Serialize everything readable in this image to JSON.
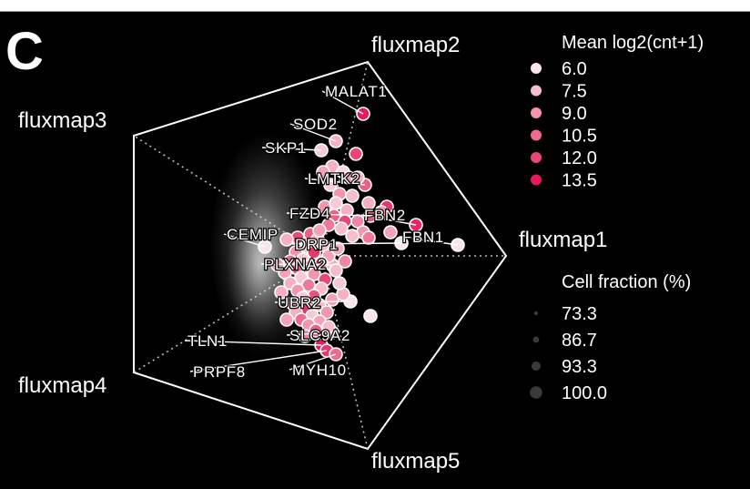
{
  "panel_label": "C",
  "chart_data": {
    "type": "scatter",
    "title": "",
    "xlabel": "",
    "ylabel": "",
    "grid": false,
    "axes": [
      "fluxmap1",
      "fluxmap2",
      "fluxmap3",
      "fluxmap4",
      "fluxmap5"
    ],
    "color_legend": {
      "title": "Mean log2(cnt+1)",
      "values": [
        "6.0",
        "7.5",
        "9.0",
        "10.5",
        "12.0",
        "13.5"
      ],
      "colors": [
        "#fce4ec",
        "#f9bccc",
        "#f594ad",
        "#f06a90",
        "#ea4676",
        "#e8185e"
      ],
      "placement": "top-right"
    },
    "size_legend": {
      "title": "Cell fraction (%)",
      "values": [
        "73.3",
        "86.7",
        "93.3",
        "100.0"
      ],
      "placement": "right"
    },
    "points": [
      {
        "label": "MALAT1",
        "x": 0.23,
        "y": 0.78,
        "expr": 13.5,
        "frac": 100.0
      },
      {
        "label": "SOD2",
        "x": 0.08,
        "y": 0.63,
        "expr": 8.0,
        "frac": 100.0
      },
      {
        "label": "SKP1",
        "x": 0.0,
        "y": 0.58,
        "expr": 7.0,
        "frac": 100.0
      },
      {
        "label": "LMTK2",
        "x": 0.24,
        "y": 0.39,
        "expr": 11.0,
        "frac": 100.0
      },
      {
        "label": "FBN2",
        "x": 0.52,
        "y": 0.17,
        "expr": 13.0,
        "frac": 100.0
      },
      {
        "label": "FZD4",
        "x": 0.27,
        "y": 0.22,
        "expr": 11.5,
        "frac": 100.0
      },
      {
        "label": "FBN1",
        "x": 0.75,
        "y": 0.06,
        "expr": 6.0,
        "frac": 100.0
      },
      {
        "label": "CEMIP",
        "x": -0.31,
        "y": 0.05,
        "expr": 6.0,
        "frac": 100.0
      },
      {
        "label": "DRP1",
        "x": 0.44,
        "y": 0.07,
        "expr": 6.0,
        "frac": 100.0
      },
      {
        "label": "PLXNA2",
        "x": 0.06,
        "y": -0.05,
        "expr": 8.0,
        "frac": 100.0
      },
      {
        "label": "UBR2",
        "x": 0.16,
        "y": -0.25,
        "expr": 6.0,
        "frac": 100.0
      },
      {
        "label": "SLC9A2",
        "x": 0.06,
        "y": -0.42,
        "expr": 8.0,
        "frac": 100.0
      },
      {
        "label": "TLN1",
        "x": 0.0,
        "y": -0.49,
        "expr": 13.5,
        "frac": 100.0
      },
      {
        "label": "PRPF8",
        "x": 0.03,
        "y": -0.52,
        "expr": 12.5,
        "frac": 100.0
      },
      {
        "label": "MYH10",
        "x": 0.08,
        "y": -0.54,
        "expr": 10.5,
        "frac": 100.0
      },
      {
        "label": "",
        "x": 0.19,
        "y": 0.56,
        "expr": 12.0,
        "frac": 100.0
      },
      {
        "label": "",
        "x": 0.06,
        "y": 0.49,
        "expr": 8.0,
        "frac": 100.0
      },
      {
        "label": "",
        "x": 0.12,
        "y": 0.46,
        "expr": 6.5,
        "frac": 100.0
      },
      {
        "label": "",
        "x": 0.01,
        "y": 0.46,
        "expr": 8.5,
        "frac": 100.0
      },
      {
        "label": "",
        "x": 0.15,
        "y": 0.43,
        "expr": 9.0,
        "frac": 100.0
      },
      {
        "label": "",
        "x": 0.2,
        "y": 0.43,
        "expr": 8.0,
        "frac": 100.0
      },
      {
        "label": "",
        "x": 0.05,
        "y": 0.39,
        "expr": 7.0,
        "frac": 100.0
      },
      {
        "label": "",
        "x": 0.1,
        "y": 0.34,
        "expr": 9.0,
        "frac": 100.0
      },
      {
        "label": "",
        "x": 0.17,
        "y": 0.33,
        "expr": 7.5,
        "frac": 100.0
      },
      {
        "label": "",
        "x": 0.26,
        "y": 0.29,
        "expr": 8.0,
        "frac": 100.0
      },
      {
        "label": "",
        "x": 0.36,
        "y": 0.27,
        "expr": 12.5,
        "frac": 100.0
      },
      {
        "label": "",
        "x": 0.33,
        "y": 0.24,
        "expr": 9.0,
        "frac": 100.0
      },
      {
        "label": "",
        "x": 0.07,
        "y": 0.22,
        "expr": 11.0,
        "frac": 100.0
      },
      {
        "label": "",
        "x": 0.14,
        "y": 0.25,
        "expr": 8.0,
        "frac": 100.0
      },
      {
        "label": "",
        "x": 0.2,
        "y": 0.19,
        "expr": 9.5,
        "frac": 100.0
      },
      {
        "label": "",
        "x": 0.13,
        "y": 0.19,
        "expr": 12.0,
        "frac": 100.0
      },
      {
        "label": "",
        "x": 0.38,
        "y": 0.13,
        "expr": 8.5,
        "frac": 100.0
      },
      {
        "label": "",
        "x": 0.23,
        "y": 0.13,
        "expr": 9.0,
        "frac": 100.0
      },
      {
        "label": "",
        "x": 0.17,
        "y": 0.11,
        "expr": 7.5,
        "frac": 100.0
      },
      {
        "label": "",
        "x": 0.26,
        "y": 0.1,
        "expr": 10.0,
        "frac": 100.0
      },
      {
        "label": "",
        "x": -0.06,
        "y": 0.12,
        "expr": 11.0,
        "frac": 100.0
      },
      {
        "label": "",
        "x": -0.13,
        "y": 0.1,
        "expr": 12.0,
        "frac": 100.0
      },
      {
        "label": "",
        "x": -0.02,
        "y": 0.09,
        "expr": 8.0,
        "frac": 100.0
      },
      {
        "label": "",
        "x": 0.01,
        "y": 0.06,
        "expr": 7.5,
        "frac": 100.0
      },
      {
        "label": "",
        "x": -0.08,
        "y": 0.05,
        "expr": 7.0,
        "frac": 100.0
      },
      {
        "label": "",
        "x": -0.14,
        "y": 0.02,
        "expr": 9.0,
        "frac": 100.0
      },
      {
        "label": "",
        "x": -0.04,
        "y": 0.02,
        "expr": 12.5,
        "frac": 100.0
      },
      {
        "label": "",
        "x": 0.04,
        "y": 0.0,
        "expr": 8.5,
        "frac": 100.0
      },
      {
        "label": "",
        "x": -0.1,
        "y": -0.02,
        "expr": 7.0,
        "frac": 100.0
      },
      {
        "label": "",
        "x": -0.17,
        "y": -0.03,
        "expr": 10.5,
        "frac": 100.0
      },
      {
        "label": "",
        "x": 0.0,
        "y": -0.04,
        "expr": 9.5,
        "frac": 100.0
      },
      {
        "label": "",
        "x": -0.07,
        "y": -0.06,
        "expr": 8.0,
        "frac": 100.0
      },
      {
        "label": "",
        "x": -0.13,
        "y": -0.07,
        "expr": 11.0,
        "frac": 100.0
      },
      {
        "label": "",
        "x": 0.08,
        "y": -0.08,
        "expr": 7.5,
        "frac": 100.0
      },
      {
        "label": "",
        "x": -0.2,
        "y": -0.09,
        "expr": 8.5,
        "frac": 100.0
      },
      {
        "label": "",
        "x": -0.04,
        "y": -0.1,
        "expr": 9.0,
        "frac": 100.0
      },
      {
        "label": "",
        "x": -0.11,
        "y": -0.12,
        "expr": 7.0,
        "frac": 100.0
      },
      {
        "label": "",
        "x": 0.02,
        "y": -0.13,
        "expr": 12.0,
        "frac": 100.0
      },
      {
        "label": "",
        "x": -0.17,
        "y": -0.15,
        "expr": 8.0,
        "frac": 100.0
      },
      {
        "label": "",
        "x": -0.07,
        "y": -0.16,
        "expr": 10.0,
        "frac": 100.0
      },
      {
        "label": "",
        "x": 0.0,
        "y": -0.18,
        "expr": 7.5,
        "frac": 100.0
      },
      {
        "label": "",
        "x": -0.13,
        "y": -0.19,
        "expr": 9.0,
        "frac": 100.0
      },
      {
        "label": "",
        "x": -0.22,
        "y": -0.2,
        "expr": 8.0,
        "frac": 100.0
      },
      {
        "label": "",
        "x": -0.04,
        "y": -0.22,
        "expr": 11.5,
        "frac": 100.0
      },
      {
        "label": "",
        "x": -0.1,
        "y": -0.23,
        "expr": 7.0,
        "frac": 100.0
      },
      {
        "label": "",
        "x": 0.06,
        "y": -0.24,
        "expr": 8.5,
        "frac": 100.0
      },
      {
        "label": "",
        "x": -0.16,
        "y": -0.26,
        "expr": 9.5,
        "frac": 100.0
      },
      {
        "label": "",
        "x": -0.01,
        "y": -0.27,
        "expr": 7.5,
        "frac": 100.0
      },
      {
        "label": "",
        "x": -0.08,
        "y": -0.29,
        "expr": 12.5,
        "frac": 100.0
      },
      {
        "label": "",
        "x": -0.14,
        "y": -0.31,
        "expr": 8.0,
        "frac": 100.0
      },
      {
        "label": "",
        "x": 0.03,
        "y": -0.31,
        "expr": 9.0,
        "frac": 100.0
      },
      {
        "label": "",
        "x": -0.05,
        "y": -0.33,
        "expr": 7.0,
        "frac": 100.0
      },
      {
        "label": "",
        "x": -0.11,
        "y": -0.35,
        "expr": 10.5,
        "frac": 100.0
      },
      {
        "label": "",
        "x": -0.01,
        "y": -0.36,
        "expr": 8.5,
        "frac": 100.0
      },
      {
        "label": "",
        "x": -0.07,
        "y": -0.38,
        "expr": 9.0,
        "frac": 100.0
      },
      {
        "label": "",
        "x": 0.04,
        "y": -0.39,
        "expr": 7.5,
        "frac": 100.0
      },
      {
        "label": "",
        "x": -0.03,
        "y": -0.41,
        "expr": 11.0,
        "frac": 100.0
      },
      {
        "label": "",
        "x": 0.12,
        "y": -0.21,
        "expr": 8.0,
        "frac": 100.0
      },
      {
        "label": "",
        "x": 0.1,
        "y": -0.15,
        "expr": 7.0,
        "frac": 100.0
      },
      {
        "label": "",
        "x": 0.13,
        "y": -0.03,
        "expr": 9.5,
        "frac": 100.0
      },
      {
        "label": "",
        "x": 0.09,
        "y": 0.04,
        "expr": 8.0,
        "frac": 100.0
      },
      {
        "label": "",
        "x": 0.11,
        "y": 0.15,
        "expr": 7.5,
        "frac": 100.0
      },
      {
        "label": "",
        "x": 0.04,
        "y": 0.17,
        "expr": 10.0,
        "frac": 100.0
      },
      {
        "label": "",
        "x": -0.01,
        "y": 0.14,
        "expr": 8.5,
        "frac": 100.0
      },
      {
        "label": "",
        "x": 0.02,
        "y": 0.27,
        "expr": 9.0,
        "frac": 100.0
      },
      {
        "label": "",
        "x": 0.08,
        "y": 0.29,
        "expr": 7.0,
        "frac": 100.0
      },
      {
        "label": "",
        "x": -0.19,
        "y": 0.09,
        "expr": 8.0,
        "frac": 100.0
      },
      {
        "label": "",
        "x": -0.24,
        "y": -0.05,
        "expr": 9.0,
        "frac": 100.0
      },
      {
        "label": "",
        "x": -0.19,
        "y": -0.35,
        "expr": 8.5,
        "frac": 100.0
      },
      {
        "label": "",
        "x": -0.09,
        "y": -0.44,
        "expr": 9.5,
        "frac": 100.0
      },
      {
        "label": "",
        "x": 0.27,
        "y": -0.33,
        "expr": 6.0,
        "frac": 100.0
      }
    ]
  }
}
